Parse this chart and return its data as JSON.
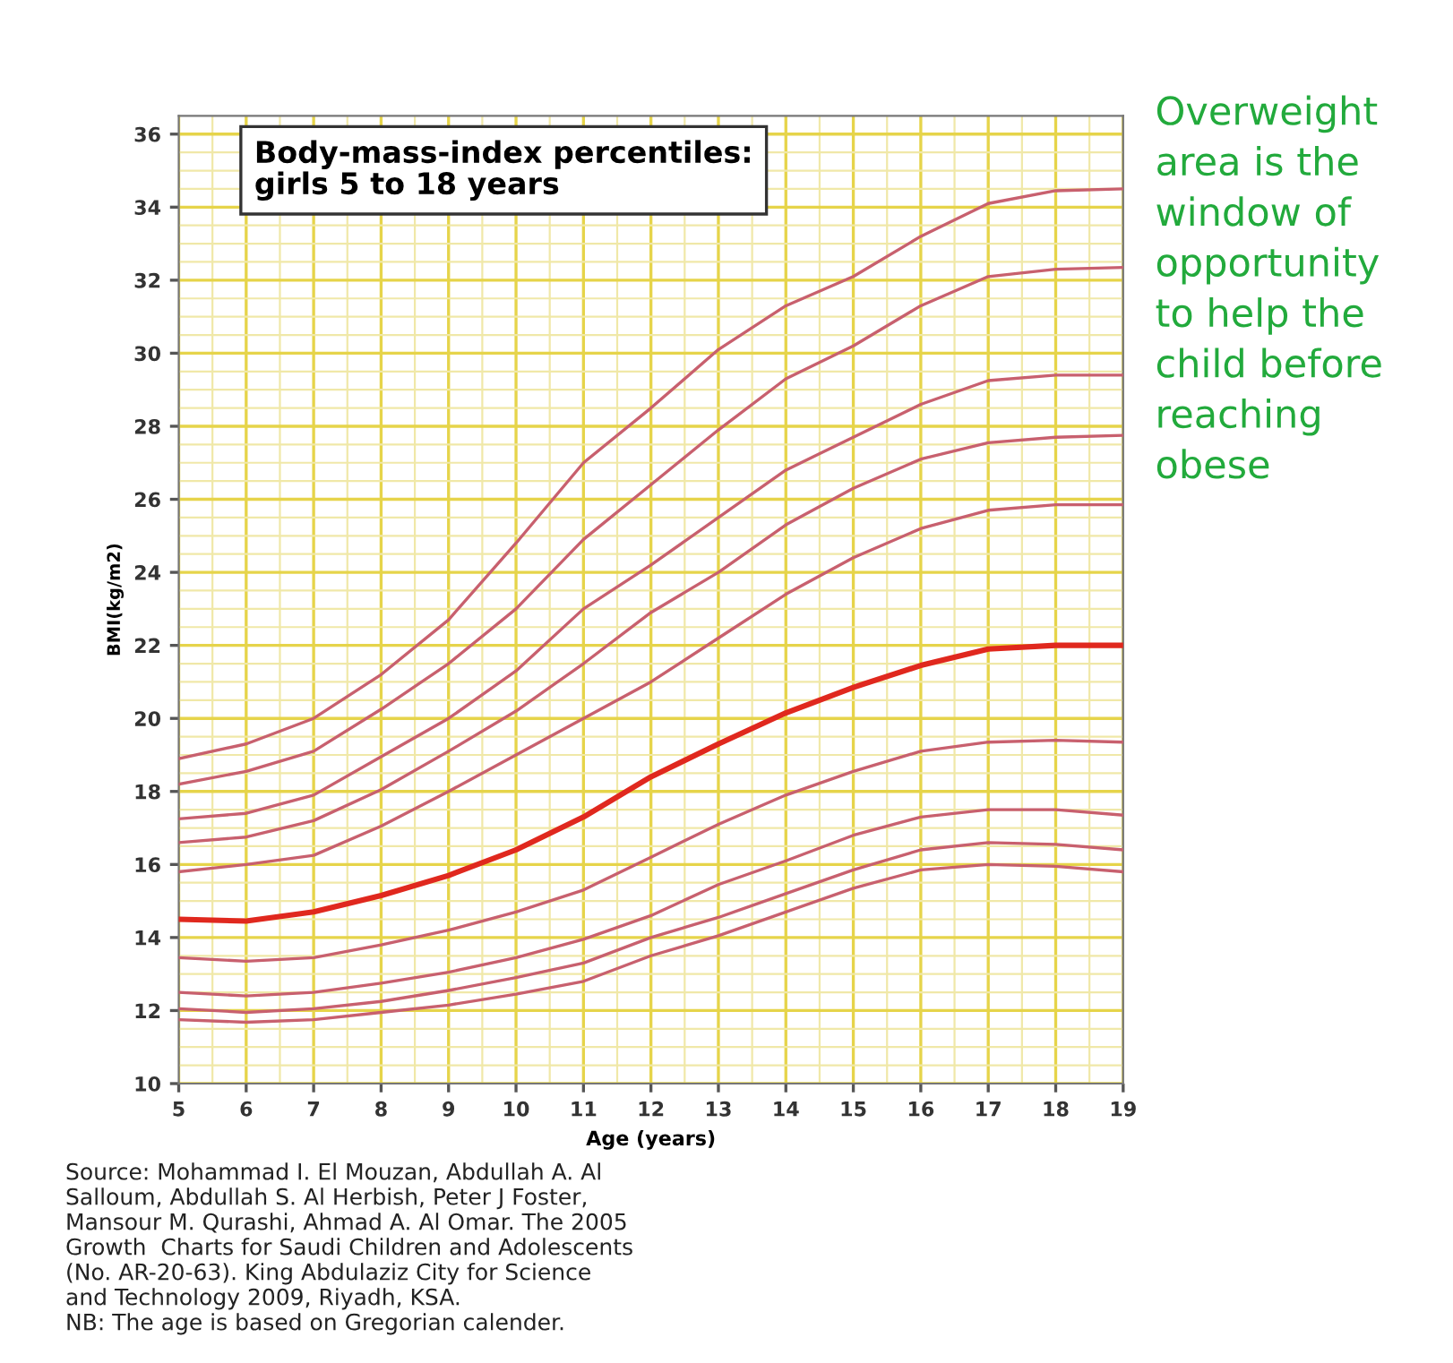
{
  "chart_data": {
    "type": "line",
    "title": "Body-mass-index percentiles:\ngirls 5 to 18 years",
    "xlabel": "Age (years)",
    "ylabel": "BMI(kg/m2)",
    "x": [
      5,
      6,
      7,
      8,
      9,
      10,
      11,
      12,
      13,
      14,
      15,
      16,
      17,
      18,
      19
    ],
    "xlim": [
      5,
      19
    ],
    "xticks": [
      5,
      {
        "value": 5.5,
        "label": null
      },
      6,
      {
        "value": 6.5,
        "label": null
      },
      7,
      {
        "value": 7.5,
        "label": null
      },
      8,
      {
        "value": 8.5,
        "label": null
      },
      9,
      {
        "value": 9.5,
        "label": null
      },
      10,
      {
        "value": 10.5,
        "label": null
      },
      11,
      {
        "value": 11.5,
        "label": null
      },
      12,
      {
        "value": 12.5,
        "label": null
      },
      13,
      {
        "value": 13.5,
        "label": null
      },
      14,
      {
        "value": 14.5,
        "label": null
      },
      15,
      {
        "value": 15.5,
        "label": null
      },
      16,
      {
        "value": 16.5,
        "label": null
      },
      17,
      {
        "value": 17.5,
        "label": null
      },
      18,
      {
        "value": 18.5,
        "label": null
      },
      19
    ],
    "ylim": [
      10,
      36.5
    ],
    "yticks": [
      10,
      {
        "value": 10.5,
        "label": null
      },
      {
        "value": 11,
        "label": null
      },
      {
        "value": 11.5,
        "label": null
      },
      12,
      {
        "value": 12.5,
        "label": null
      },
      {
        "value": 13,
        "label": null
      },
      {
        "value": 13.5,
        "label": null
      },
      14,
      {
        "value": 14.5,
        "label": null
      },
      {
        "value": 15,
        "label": null
      },
      {
        "value": 15.5,
        "label": null
      },
      16,
      {
        "value": 16.5,
        "label": null
      },
      {
        "value": 17,
        "label": null
      },
      {
        "value": 17.5,
        "label": null
      },
      18,
      {
        "value": 18.5,
        "label": null
      },
      {
        "value": 19,
        "label": null
      },
      {
        "value": 19.5,
        "label": null
      },
      20,
      {
        "value": 20.5,
        "label": null
      },
      {
        "value": 21,
        "label": null
      },
      {
        "value": 21.5,
        "label": null
      },
      22,
      {
        "value": 22.5,
        "label": null
      },
      {
        "value": 23,
        "label": null
      },
      {
        "value": 23.5,
        "label": null
      },
      24,
      {
        "value": 24.5,
        "label": null
      },
      {
        "value": 25,
        "label": null
      },
      {
        "value": 25.5,
        "label": null
      },
      26,
      {
        "value": 26.5,
        "label": null
      },
      {
        "value": 27,
        "label": null
      },
      {
        "value": 27.5,
        "label": null
      },
      28,
      {
        "value": 28.5,
        "label": null
      },
      {
        "value": 29,
        "label": null
      },
      {
        "value": 29.5,
        "label": null
      },
      30,
      {
        "value": 30.5,
        "label": null
      },
      {
        "value": 31,
        "label": null
      },
      {
        "value": 31.5,
        "label": null
      },
      32,
      {
        "value": 32.5,
        "label": null
      },
      {
        "value": 33,
        "label": null
      },
      {
        "value": 33.5,
        "label": null
      },
      34,
      {
        "value": 34.5,
        "label": null
      },
      {
        "value": 35,
        "label": null
      },
      {
        "value": 35.5,
        "label": null
      },
      36
    ],
    "grid": true,
    "legend": false,
    "marker": "none",
    "line_style": "solid",
    "series": [
      {
        "color": "#c8606e",
        "values": [
          18.9,
          19.3,
          20.0,
          21.2,
          22.7,
          24.8,
          27.0,
          28.5,
          30.1,
          31.3,
          32.1,
          33.2,
          34.1,
          34.45,
          34.5
        ]
      },
      {
        "color": "#c8606e",
        "values": [
          18.2,
          18.55,
          19.1,
          20.25,
          21.5,
          23.0,
          24.9,
          26.4,
          27.9,
          29.3,
          30.2,
          31.3,
          32.1,
          32.3,
          32.35
        ]
      },
      {
        "color": "#c8606e",
        "values": [
          17.25,
          17.4,
          17.9,
          18.95,
          20.0,
          21.3,
          23.0,
          24.2,
          25.5,
          26.8,
          27.7,
          28.6,
          29.25,
          29.4,
          29.4
        ]
      },
      {
        "color": "#c8606e",
        "values": [
          16.6,
          16.75,
          17.2,
          18.05,
          19.1,
          20.2,
          21.5,
          22.9,
          24.0,
          25.3,
          26.3,
          27.1,
          27.55,
          27.7,
          27.75
        ]
      },
      {
        "color": "#c8606e",
        "values": [
          15.8,
          16.0,
          16.25,
          17.05,
          18.0,
          19.0,
          20.0,
          21.0,
          22.2,
          23.4,
          24.4,
          25.2,
          25.7,
          25.85,
          25.85
        ]
      },
      {
        "color": "#e0281e",
        "values": [
          14.5,
          14.45,
          14.7,
          15.15,
          15.7,
          16.4,
          17.3,
          18.4,
          19.3,
          20.15,
          20.85,
          21.45,
          21.9,
          22.0,
          22.0
        ]
      },
      {
        "color": "#c8606e",
        "values": [
          13.45,
          13.35,
          13.45,
          13.8,
          14.2,
          14.7,
          15.3,
          16.2,
          17.1,
          17.9,
          18.55,
          19.1,
          19.35,
          19.4,
          19.35
        ]
      },
      {
        "color": "#c8606e",
        "values": [
          12.5,
          12.4,
          12.5,
          12.75,
          13.05,
          13.45,
          13.95,
          14.6,
          15.45,
          16.1,
          16.8,
          17.3,
          17.5,
          17.5,
          17.35
        ]
      },
      {
        "color": "#c8606e",
        "values": [
          12.05,
          11.95,
          12.05,
          12.25,
          12.55,
          12.9,
          13.3,
          14.0,
          14.55,
          15.2,
          15.85,
          16.4,
          16.6,
          16.55,
          16.4
        ]
      },
      {
        "color": "#c8606e",
        "values": [
          11.75,
          11.68,
          11.75,
          11.95,
          12.15,
          12.45,
          12.8,
          13.5,
          14.05,
          14.7,
          15.35,
          15.85,
          16.0,
          15.95,
          15.8
        ]
      }
    ],
    "annotations": [
      "Overweight\narea is the\nwindow of\nopportunity\nto help the\nchild before\nreaching\nobese",
      "Source: Mohammad I. El Mouzan, Abdullah A. Al\nSalloum, Abdullah S. Al Herbish, Peter J Foster,\nMansour M. Qurashi, Ahmad A. Al Omar. The 2005\nGrowth  Charts for Saudi Children and Adolescents\n(No. AR-20-63). King Abdulaziz City for Science\nand Technology 2009, Riyadh, KSA.\nNB: The age is based on Gregorian calender."
    ]
  }
}
